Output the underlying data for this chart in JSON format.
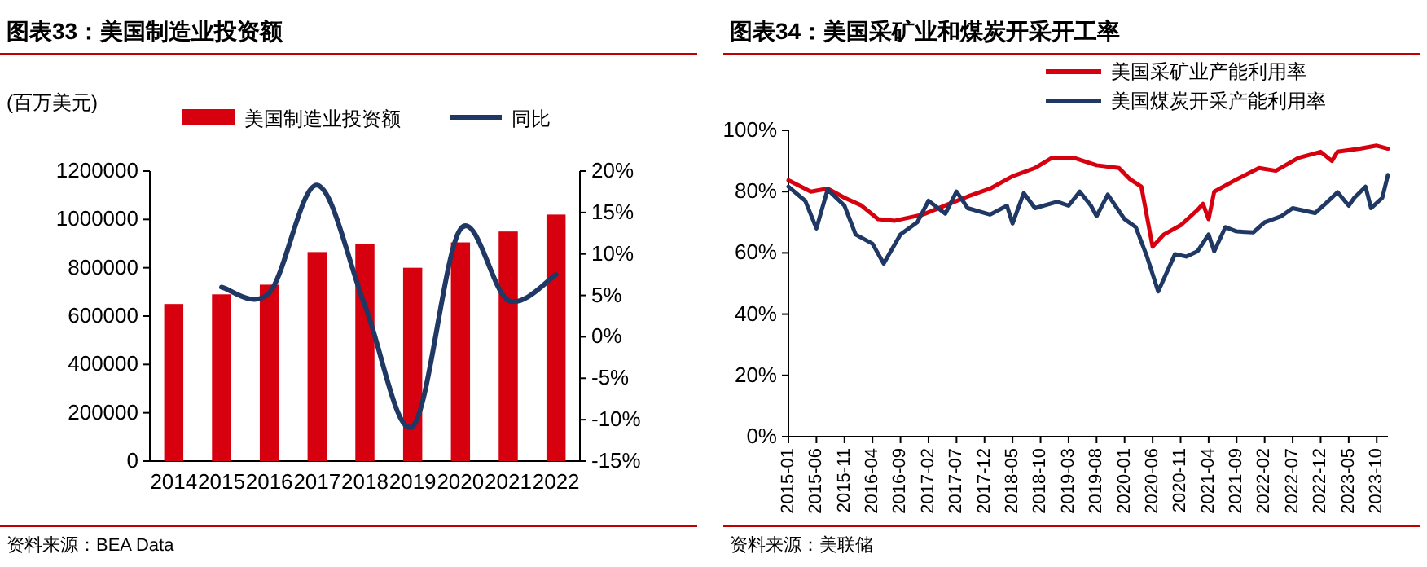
{
  "chart_data": [
    {
      "type": "bar",
      "title": "图表33：美国制造业投资额",
      "ylabel": "(百万美元)",
      "annotations": [
        "资料来源：BEA Data"
      ],
      "categories": [
        "2014",
        "2015",
        "2016",
        "2017",
        "2018",
        "2019",
        "2020",
        "2021",
        "2022"
      ],
      "series": [
        {
          "name": "美国制造业投资额",
          "type": "bar",
          "color": "#d7000f",
          "values": [
            650000,
            690000,
            730000,
            865000,
            900000,
            800000,
            905000,
            950000,
            1020000
          ]
        },
        {
          "name": "同比",
          "type": "line",
          "axis": "y2",
          "color": "#1f3864",
          "values": [
            null,
            6.0,
            5.3,
            18.3,
            3.8,
            -10.8,
            13.0,
            4.4,
            7.5
          ]
        }
      ],
      "ylim": [
        0,
        1200000
      ],
      "yticks": [
        0,
        200000,
        400000,
        600000,
        800000,
        1000000,
        1200000
      ],
      "y2lim": [
        -15,
        20
      ],
      "y2ticks": [
        {
          "value": -15,
          "label": "-15%"
        },
        {
          "value": -10,
          "label": "-10%"
        },
        {
          "value": -5,
          "label": "-5%"
        },
        {
          "value": 0,
          "label": "0%"
        },
        {
          "value": 5,
          "label": "5%"
        },
        {
          "value": 10,
          "label": "10%"
        },
        {
          "value": 15,
          "label": "15%"
        },
        {
          "value": 20,
          "label": "20%"
        }
      ],
      "legend": "top",
      "grid": false
    },
    {
      "type": "line",
      "title": "图表34：美国采矿业和煤炭开采开工率",
      "annotations": [
        "资料来源：美联储"
      ],
      "series": [
        {
          "name": "美国采矿业产能利用率",
          "color": "#d7000f",
          "x": [
            "2015-01",
            "2015-05",
            "2015-08",
            "2015-11",
            "2016-02",
            "2016-05",
            "2016-08",
            "2017-01",
            "2017-05",
            "2017-09",
            "2018-01",
            "2018-05",
            "2018-09",
            "2018-12",
            "2019-04",
            "2019-08",
            "2019-12",
            "2020-02",
            "2020-04",
            "2020-06",
            "2020-08",
            "2020-11",
            "2021-02",
            "2021-03",
            "2021-04",
            "2021-05",
            "2021-09",
            "2022-01",
            "2022-04",
            "2022-08",
            "2022-12",
            "2023-02",
            "2023-03",
            "2023-07",
            "2023-10",
            "2023-12"
          ],
          "values": [
            83.7,
            80,
            81,
            78,
            75.5,
            71,
            70.5,
            72.5,
            75.5,
            78.4,
            81,
            85,
            87.7,
            91,
            91,
            88.6,
            87.7,
            84,
            81.6,
            62,
            66,
            69,
            74,
            76,
            71,
            80,
            84,
            87.7,
            86.8,
            91,
            93,
            90,
            93,
            94,
            95,
            94
          ]
        },
        {
          "name": "美国煤炭开采产能利用率",
          "color": "#1f3864",
          "x": [
            "2015-01",
            "2015-04",
            "2015-06",
            "2015-08",
            "2015-11",
            "2016-01",
            "2016-04",
            "2016-06",
            "2016-09",
            "2016-12",
            "2017-02",
            "2017-05",
            "2017-07",
            "2017-09",
            "2018-01",
            "2018-04",
            "2018-05",
            "2018-07",
            "2018-09",
            "2019-01",
            "2019-03",
            "2019-05",
            "2019-07",
            "2019-08",
            "2019-10",
            "2020-01",
            "2020-03",
            "2020-05",
            "2020-07",
            "2020-10",
            "2020-12",
            "2021-02",
            "2021-04",
            "2021-05",
            "2021-07",
            "2021-09",
            "2021-12",
            "2022-02",
            "2022-05",
            "2022-07",
            "2022-11",
            "2023-01",
            "2023-03",
            "2023-05",
            "2023-06",
            "2023-08",
            "2023-09",
            "2023-11",
            "2023-12"
          ],
          "values": [
            81.6,
            77,
            68,
            80.7,
            75.4,
            66,
            63,
            56.5,
            66,
            70,
            77,
            72.8,
            80,
            74.6,
            72.5,
            75.4,
            69.6,
            79.5,
            74.6,
            76.7,
            75.4,
            80,
            75.4,
            72,
            79,
            71,
            68.4,
            58.8,
            47.4,
            59.6,
            58.8,
            60.5,
            66,
            60.5,
            68.4,
            67,
            66.7,
            70,
            72,
            74.6,
            73,
            76.3,
            79.8,
            75.4,
            78,
            81.6,
            74.6,
            78,
            85.4
          ]
        }
      ],
      "xlim": [
        "2015-01",
        "2023-12"
      ],
      "xticks": [
        "2015-01",
        "2015-06",
        "2015-11",
        "2016-04",
        "2016-09",
        "2017-02",
        "2017-07",
        "2017-12",
        "2018-05",
        "2018-10",
        "2019-03",
        "2019-08",
        "2020-01",
        "2020-06",
        "2020-11",
        "2021-04",
        "2021-09",
        "2022-02",
        "2022-07",
        "2022-12",
        "2023-05",
        "2023-10"
      ],
      "ylim": [
        0,
        100
      ],
      "yticks": [
        {
          "value": 0,
          "label": "0%"
        },
        {
          "value": 20,
          "label": "20%"
        },
        {
          "value": 40,
          "label": "40%"
        },
        {
          "value": 60,
          "label": "60%"
        },
        {
          "value": 80,
          "label": "80%"
        },
        {
          "value": 100,
          "label": "100%"
        }
      ],
      "legend": "top right",
      "grid": false,
      "line_style": "solid",
      "marker": "none"
    }
  ]
}
